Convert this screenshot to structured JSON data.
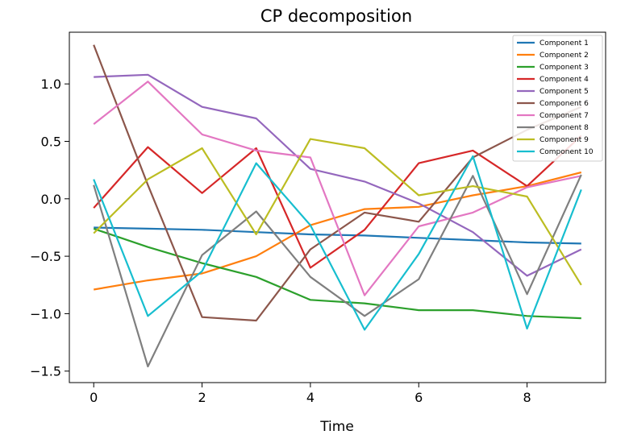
{
  "chart_data": {
    "type": "line",
    "title": "CP decomposition",
    "xlabel": "Time",
    "ylabel": "",
    "xlim": [
      -0.45,
      9.45
    ],
    "ylim": [
      -1.6,
      1.45
    ],
    "xticks": [
      0,
      2,
      4,
      6,
      8
    ],
    "yticks": [
      -1.5,
      -1.0,
      -0.5,
      0.0,
      0.5,
      1.0
    ],
    "ytick_labels": [
      "−1.5",
      "−1.0",
      "−0.5",
      "0.0",
      "0.5",
      "1.0"
    ],
    "grid": false,
    "legend_position": "upper-right",
    "x": [
      0,
      1,
      2,
      3,
      4,
      5,
      6,
      7,
      8,
      9
    ],
    "series": [
      {
        "name": "Component 1",
        "color": "#1f77b4",
        "values": [
          -0.25,
          -0.26,
          -0.27,
          -0.29,
          -0.31,
          -0.32,
          -0.34,
          -0.36,
          -0.38,
          -0.39
        ]
      },
      {
        "name": "Component 2",
        "color": "#ff7f0e",
        "values": [
          -0.79,
          -0.71,
          -0.65,
          -0.5,
          -0.23,
          -0.09,
          -0.07,
          0.03,
          0.11,
          0.23
        ]
      },
      {
        "name": "Component 3",
        "color": "#2ca02c",
        "values": [
          -0.26,
          -0.42,
          -0.56,
          -0.68,
          -0.88,
          -0.91,
          -0.97,
          -0.97,
          -1.02,
          -1.04
        ]
      },
      {
        "name": "Component 4",
        "color": "#d62728",
        "values": [
          -0.08,
          0.45,
          0.05,
          0.44,
          -0.6,
          -0.27,
          0.31,
          0.42,
          0.11,
          0.55
        ]
      },
      {
        "name": "Component 5",
        "color": "#9467bd",
        "values": [
          1.06,
          1.08,
          0.8,
          0.7,
          0.26,
          0.15,
          -0.04,
          -0.29,
          -0.67,
          -0.44
        ]
      },
      {
        "name": "Component 6",
        "color": "#8c564b",
        "values": [
          1.34,
          0.12,
          -1.03,
          -1.06,
          -0.44,
          -0.12,
          -0.2,
          0.36,
          0.6,
          0.8
        ]
      },
      {
        "name": "Component 7",
        "color": "#e377c2",
        "values": [
          0.65,
          1.02,
          0.56,
          0.42,
          0.36,
          -0.84,
          -0.24,
          -0.12,
          0.1,
          0.2
        ]
      },
      {
        "name": "Component 8",
        "color": "#7f7f7f",
        "values": [
          0.12,
          -1.46,
          -0.49,
          -0.11,
          -0.68,
          -1.02,
          -0.7,
          0.2,
          -0.83,
          0.21
        ]
      },
      {
        "name": "Component 9",
        "color": "#bcbd22",
        "values": [
          -0.3,
          0.17,
          0.44,
          -0.31,
          0.52,
          0.44,
          0.03,
          0.11,
          0.02,
          -0.75
        ]
      },
      {
        "name": "Component 10",
        "color": "#17becf",
        "values": [
          0.17,
          -1.02,
          -0.63,
          0.31,
          -0.23,
          -1.14,
          -0.48,
          0.37,
          -1.13,
          0.08
        ]
      }
    ]
  }
}
